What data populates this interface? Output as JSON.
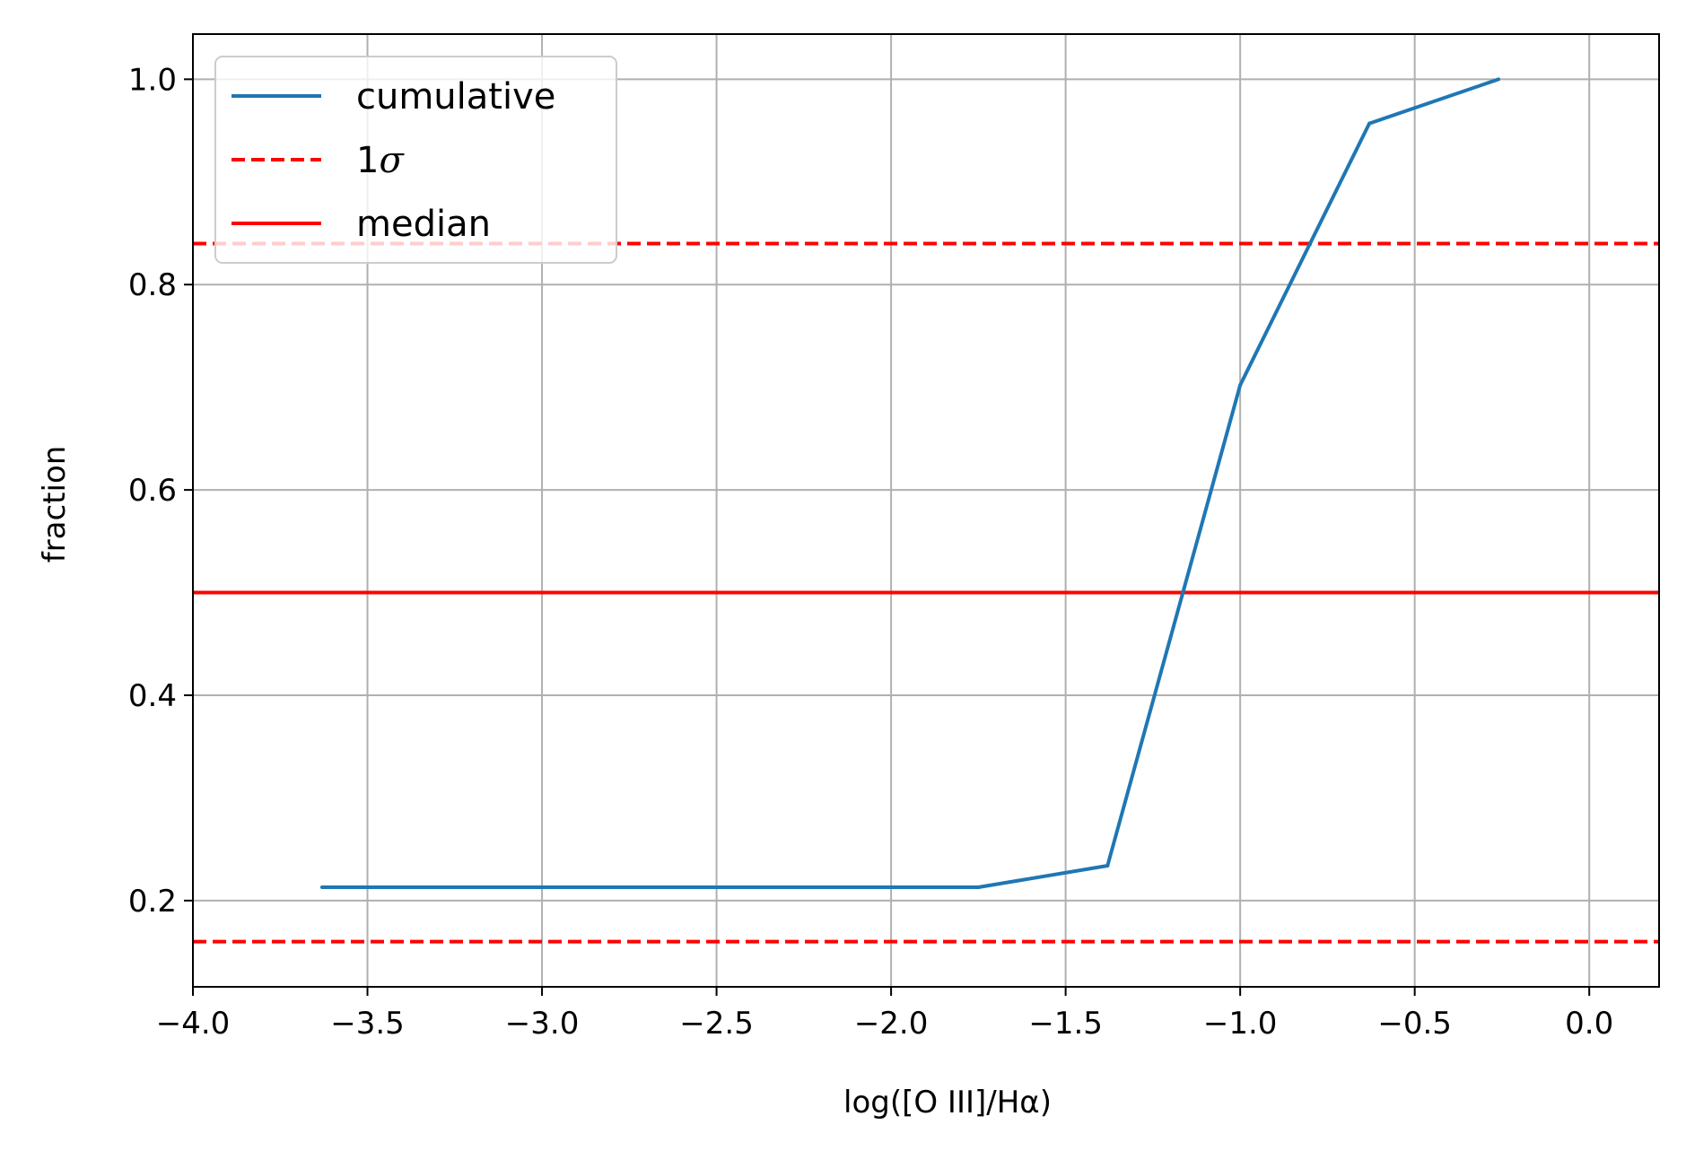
{
  "chart_data": {
    "type": "line",
    "title": "",
    "xlabel": "log([O III]/Hα)",
    "ylabel": "fraction",
    "xlim": [
      -4.0,
      0.2
    ],
    "ylim": [
      0.116,
      1.044
    ],
    "xticks": [
      -4.0,
      -3.5,
      -3.0,
      -2.5,
      -2.0,
      -1.5,
      -1.0,
      -0.5,
      0.0
    ],
    "xtick_labels": [
      "−4.0",
      "−3.5",
      "−3.0",
      "−2.5",
      "−2.0",
      "−1.5",
      "−1.0",
      "−0.5",
      "0.0"
    ],
    "yticks": [
      0.2,
      0.4,
      0.6,
      0.8,
      1.0
    ],
    "ytick_labels": [
      "0.2",
      "0.4",
      "0.6",
      "0.8",
      "1.0"
    ],
    "grid": true,
    "legend_position": "top-left",
    "series": [
      {
        "name": "cumulative",
        "style": "solid",
        "color": "#1f77b4",
        "x": [
          -3.63,
          -1.75,
          -1.38,
          -1.0,
          -0.63,
          -0.26
        ],
        "y": [
          0.213,
          0.213,
          0.234,
          0.702,
          0.957,
          1.0
        ]
      }
    ],
    "reference_lines": [
      {
        "name": "1σ",
        "legend_prefix": "1",
        "legend_symbol": "σ",
        "style": "dashed",
        "color": "#ff0000",
        "y_values": [
          0.84,
          0.16
        ]
      },
      {
        "name": "median",
        "style": "solid",
        "color": "#ff0000",
        "y_values": [
          0.5
        ]
      }
    ],
    "grid_color": "#b0b0b0"
  }
}
